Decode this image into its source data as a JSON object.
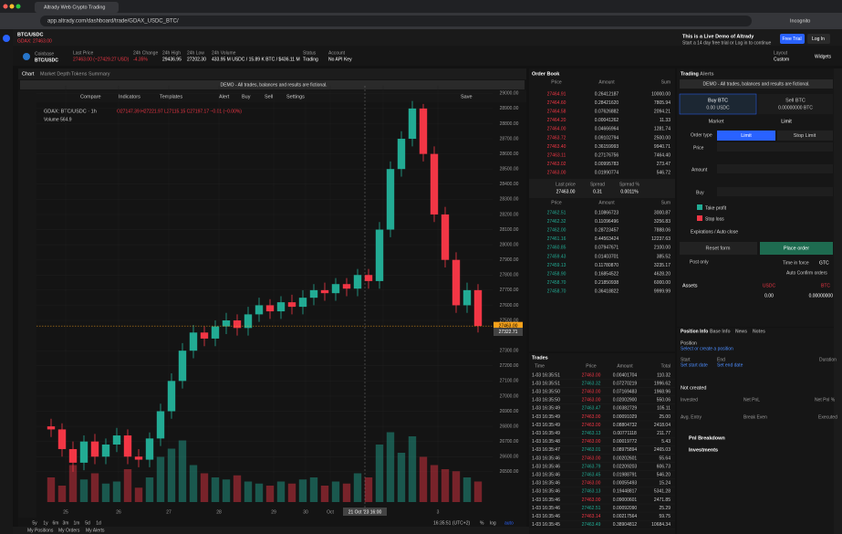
{
  "browser": {
    "tab_title": "Altrady Web Crypto Trading",
    "url": "app.altrady.com/dashboard/trade/GDAX_USDC_BTC/",
    "profile": "Incognito"
  },
  "header": {
    "pair_tab": "BTC/USDC",
    "pair_price": "GDAX: 27463.00",
    "exchange": "Coinbase",
    "pair": "BTC/USDC",
    "stats": [
      {
        "label": "Last Price",
        "value": "27463.00 (~27429.27 USD)"
      },
      {
        "label": "24h Change",
        "value": "-4.35%"
      },
      {
        "label": "24h High",
        "value": "29436.95"
      },
      {
        "label": "24h Low",
        "value": "27202.30"
      },
      {
        "label": "24h Volume",
        "value": "433.95 M USDC / 15.89 K BTC / $436.11 M"
      },
      {
        "label": "Status",
        "value": "Trading"
      },
      {
        "label": "Account",
        "value": "No API Key"
      }
    ],
    "demo_title": "This is a Live Demo of Altrady",
    "demo_sub": "Start a 14 day free trial or Log in to continue",
    "free_trial": "Free Trial",
    "login": "Log In",
    "layout_label": "Layout",
    "layout_value": "Custom",
    "widgets": "Widgets"
  },
  "chart_panel": {
    "tabs": [
      "Chart",
      "Market Depth",
      "Tokens Summary"
    ],
    "demo_notice": "DEMO - All trades, balances and results are fictional.",
    "toolbar": [
      "Compare",
      "Indicators",
      "Templates",
      "Alert",
      "Buy",
      "Sell",
      "Settings",
      "Save"
    ],
    "legend_symbol": "GDAX: BTC/USDC · 1h",
    "legend_ohlc": "O27147.39 H27221.97 L27115.15 C27197.17 −0.01 (−0.00%)",
    "legend_volume": "Volume 564.9",
    "ranges": [
      "5y",
      "1y",
      "6m",
      "3m",
      "1m",
      "5d",
      "1d"
    ],
    "clock": "16:35:51 (UTC+2)",
    "percent": "%",
    "log": "log",
    "auto": "auto",
    "bottom_tabs": [
      "My Positions",
      "My Orders",
      "My Alerts"
    ]
  },
  "chart_data": {
    "type": "candlestick",
    "up_color": "#22ab94",
    "down_color": "#f23645",
    "grid": true,
    "open": [
      26800,
      26780,
      26650,
      26560,
      26700,
      26600,
      26680,
      26740,
      26600,
      26580,
      26720,
      26900,
      27100,
      27300,
      27420,
      27380,
      27460,
      27500,
      27450,
      27540,
      27600,
      27560,
      27620,
      27590,
      27650,
      27700,
      27680,
      27740,
      27710,
      27800,
      27760,
      28100,
      28500,
      28700,
      28900,
      28600,
      28200,
      27900,
      27600,
      27700
    ],
    "high": [
      26850,
      26820,
      26700,
      26740,
      26750,
      26720,
      26790,
      26780,
      26650,
      26760,
      26950,
      27150,
      27350,
      27470,
      27460,
      27500,
      27550,
      27540,
      27590,
      27650,
      27640,
      27660,
      27670,
      27700,
      27740,
      27750,
      27780,
      27780,
      27840,
      27840,
      28150,
      28550,
      28750,
      28950,
      28930,
      28650,
      28250,
      27950,
      27750,
      27740
    ],
    "low": [
      26730,
      26600,
      26500,
      26510,
      26550,
      26550,
      26630,
      26550,
      26530,
      26530,
      26670,
      26850,
      27050,
      27250,
      27330,
      27330,
      27410,
      27400,
      27400,
      27490,
      27510,
      27510,
      27540,
      27540,
      27600,
      27630,
      27630,
      27660,
      27660,
      27710,
      27710,
      28050,
      28450,
      28650,
      28550,
      28150,
      27850,
      27550,
      27550,
      27420
    ],
    "close": [
      26780,
      26650,
      26560,
      26700,
      26600,
      26680,
      26740,
      26600,
      26580,
      26720,
      26900,
      27100,
      27300,
      27420,
      27380,
      27460,
      27500,
      27450,
      27540,
      27600,
      27560,
      27620,
      27590,
      27650,
      27700,
      27680,
      27740,
      27710,
      27800,
      27760,
      28100,
      28500,
      28700,
      28900,
      28600,
      28200,
      27900,
      27600,
      27700,
      27463
    ],
    "volume": [
      60,
      40,
      90,
      55,
      70,
      45,
      50,
      80,
      35,
      60,
      110,
      130,
      150,
      90,
      70,
      60,
      55,
      65,
      50,
      45,
      40,
      50,
      45,
      55,
      60,
      40,
      50,
      45,
      70,
      60,
      140,
      170,
      120,
      160,
      110,
      90,
      80,
      75,
      60,
      50
    ],
    "volume_lim": [
      0,
      200
    ],
    "ylim": [
      26300,
      29050
    ],
    "yticks": [
      {
        "value": 26500,
        "label": "26500.00"
      },
      {
        "value": 26600,
        "label": "26600.00"
      },
      {
        "value": 26700,
        "label": "26700.00"
      },
      {
        "value": 26800,
        "label": "26800.00"
      },
      {
        "value": 26900,
        "label": "26900.00"
      },
      {
        "value": 27000,
        "label": "27000.00"
      },
      {
        "value": 27100,
        "label": "27100.00"
      },
      {
        "value": 27200,
        "label": "27200.00"
      },
      {
        "value": 27300,
        "label": "27300.00"
      },
      {
        "value": 27500,
        "label": "27500.00"
      },
      {
        "value": 27600,
        "label": "27600.00"
      },
      {
        "value": 27700,
        "label": "27700.00"
      },
      {
        "value": 27800,
        "label": "27800.00"
      },
      {
        "value": 27900,
        "label": "27900.00"
      },
      {
        "value": 28000,
        "label": "28000.00"
      },
      {
        "value": 28100,
        "label": "28100.00"
      },
      {
        "value": 28200,
        "label": "28200.00"
      },
      {
        "value": 28300,
        "label": "28300.00"
      },
      {
        "value": 28400,
        "label": "28400.00"
      },
      {
        "value": 28500,
        "label": "28500.00"
      },
      {
        "value": 28600,
        "label": "28600.00"
      },
      {
        "value": 28700,
        "label": "28700.00"
      },
      {
        "value": 28800,
        "label": "28800.00"
      },
      {
        "value": 28900,
        "label": "28900.00"
      },
      {
        "value": 29000,
        "label": "29000.00"
      }
    ],
    "x_labels": [
      "25",
      "26",
      "27",
      "28",
      "29",
      "30",
      "Oct",
      "2",
      "3"
    ],
    "crosshair_time": "21 Oct '23 16:00",
    "crosshair_price_label": "27322.71",
    "last_price_label": "27463.00"
  },
  "order_book": {
    "title": "Order Book",
    "columns": [
      "Price",
      "Amount",
      "Sum"
    ],
    "asks": [
      [
        "27464.91",
        "0.26412187",
        "10000.00"
      ],
      [
        "27464.60",
        "0.28421620",
        "7805.94"
      ],
      [
        "27464.58",
        "0.07626882",
        "2094.21"
      ],
      [
        "27464.20",
        "0.00041262",
        "11.33"
      ],
      [
        "27464.00",
        "0.04666964",
        "1281.74"
      ],
      [
        "27463.72",
        "0.09102794",
        "2500.00"
      ],
      [
        "27463.40",
        "0.36159993",
        "9940.71"
      ],
      [
        "27463.11",
        "0.27176756",
        "7464.40"
      ],
      [
        "27463.02",
        "0.00995783",
        "273.47"
      ],
      [
        "27463.00",
        "0.01990774",
        "546.72"
      ]
    ],
    "last_price_label": "Last price",
    "last_price": "27463.00",
    "spread_label": "Spread",
    "spread": "0.31",
    "spread_pct_label": "Spread %",
    "spread_pct": "0.0011%",
    "bids": [
      [
        "27462.51",
        "0.10866723",
        "3000.87"
      ],
      [
        "27462.32",
        "0.11096496",
        "3256.83"
      ],
      [
        "27462.00",
        "0.28723457",
        "7888.06"
      ],
      [
        "27461.16",
        "0.44563424",
        "12237.63"
      ],
      [
        "27460.85",
        "0.07947671",
        "2100.00"
      ],
      [
        "27459.43",
        "0.01403701",
        "385.52"
      ],
      [
        "27459.13",
        "0.11780870",
        "3235.17"
      ],
      [
        "27458.90",
        "0.16854522",
        "4628.20"
      ],
      [
        "27458.70",
        "0.21850938",
        "6000.00"
      ],
      [
        "27458.70",
        "0.36418822",
        "9999.99"
      ]
    ]
  },
  "trades": {
    "title": "Trades",
    "columns": [
      "Time",
      "Price",
      "Amount",
      "Total"
    ],
    "rows": [
      [
        "1-03 16:35:51",
        "27463.00",
        "0.00401704",
        "110.32",
        "sell"
      ],
      [
        "1-03 16:35:51",
        "27463.32",
        "0.07270219",
        "1996.62",
        "buy"
      ],
      [
        "1-03 16:35:50",
        "27463.00",
        "0.07169483",
        "1968.96",
        "sell"
      ],
      [
        "1-03 16:35:50",
        "27463.00",
        "0.02002900",
        "550.06",
        "sell"
      ],
      [
        "1-03 16:35:49",
        "27463.47",
        "0.00382729",
        "105.11",
        "buy"
      ],
      [
        "1-03 16:35:49",
        "27463.00",
        "0.00091029",
        "25.00",
        "sell"
      ],
      [
        "1-03 16:35:49",
        "27463.00",
        "0.08804732",
        "2418.04",
        "sell"
      ],
      [
        "1-03 16:35:49",
        "27463.13",
        "0.00771118",
        "211.77",
        "buy"
      ],
      [
        "1-03 16:35:48",
        "27463.00",
        "0.00019772",
        "5.43",
        "sell"
      ],
      [
        "1-03 16:35:47",
        "27463.01",
        "0.08975894",
        "2465.03",
        "buy"
      ],
      [
        "1-03 16:35:46",
        "27463.00",
        "0.00202601",
        "55.64",
        "sell"
      ],
      [
        "1-03 16:35:46",
        "27463.79",
        "0.02209203",
        "606.73",
        "buy"
      ],
      [
        "1-03 16:35:46",
        "27463.45",
        "0.01988791",
        "546.20",
        "buy"
      ],
      [
        "1-03 16:35:46",
        "27463.00",
        "0.00055493",
        "15.24",
        "sell"
      ],
      [
        "1-03 16:35:46",
        "27463.13",
        "0.19448817",
        "5341.28",
        "buy"
      ],
      [
        "1-03 16:35:46",
        "27463.00",
        "0.09000601",
        "2471.85",
        "sell"
      ],
      [
        "1-03 16:35:46",
        "27462.51",
        "0.00092090",
        "25.29",
        "buy"
      ],
      [
        "1-03 16:35:46",
        "27463.14",
        "0.00217564",
        "59.75",
        "sell"
      ],
      [
        "1-03 16:35:45",
        "27463.49",
        "0.38904812",
        "10684.34",
        "buy"
      ]
    ]
  },
  "trading": {
    "tabs": [
      "Trading",
      "Alerts"
    ],
    "demo_notice": "DEMO - All trades, balances and results are fictional.",
    "buy_title": "Buy BTC",
    "buy_balance": "0.00 USDC",
    "sell_title": "Sell BTC",
    "sell_balance": "0.00000000 BTC",
    "market": "Market",
    "limit_tab": "Limit",
    "order_type": "Order type",
    "limit": "Limit",
    "stop_limit": "Stop Limit",
    "price": "Price",
    "amount": "Amount",
    "buy": "Buy",
    "take_profit": "Take profit",
    "stop_loss": "Stop loss",
    "expirations": "Expirations / Auto close",
    "reset": "Reset form",
    "place": "Place order",
    "post_only": "Post only",
    "time_in_force": "Time in force",
    "gtc": "GTC",
    "auto_confirm": "Auto Confirm orders",
    "assets": "Assets",
    "usdc": "USDC",
    "btc": "BTC",
    "usdc_value": "0.00",
    "btc_value": "0.00000000"
  },
  "position": {
    "tabs": [
      "Position Info",
      "Base Info",
      "News",
      "Notes"
    ],
    "title": "Position",
    "select": "Select or create a position",
    "start": "Start",
    "end": "End",
    "set_start": "Set start date",
    "set_end": "Set end date",
    "duration": "Duration",
    "status": "Not created",
    "invested": "Invested",
    "net_pnl": "Net PnL",
    "net_pnl_pct": "Net Pnl %",
    "avg_entry": "Avg. Entry",
    "break_even": "Break Even",
    "executed": "Executed",
    "pnl_breakdown": "Pnl Breakdown",
    "investments": "Investments"
  }
}
